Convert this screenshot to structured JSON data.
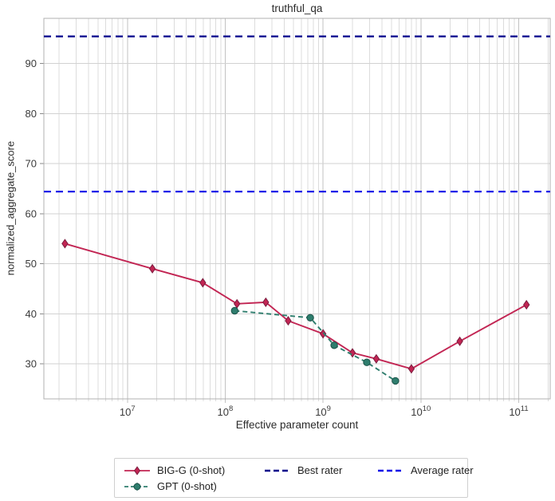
{
  "chart_data": {
    "type": "line",
    "title": "truthful_qa",
    "xlabel": "Effective parameter count",
    "ylabel": "normalized_aggregate_score",
    "x_scale": "log",
    "grid": true,
    "legend_position": "bottom",
    "xlim": [
      1400000,
      210000000000
    ],
    "ylim": [
      23,
      99
    ],
    "x_ticks": [
      10000000,
      100000000,
      1000000000,
      10000000000,
      100000000000
    ],
    "y_ticks": [
      30,
      40,
      50,
      60,
      70,
      80,
      90
    ],
    "series": [
      {
        "name": "BIG-G (0-shot)",
        "marker": "diamond",
        "line_style": "solid",
        "color": "#c22553",
        "edge_color": "#7b1d3f",
        "yerr": 0.7,
        "points": [
          [
            2300000,
            54.0
          ],
          [
            18000000,
            49.0
          ],
          [
            59000000,
            46.2
          ],
          [
            132000000,
            42.0
          ],
          [
            260000000,
            42.3
          ],
          [
            440000000,
            38.6
          ],
          [
            1000000000,
            36.0
          ],
          [
            2000000000,
            32.2
          ],
          [
            3500000000,
            31.0
          ],
          [
            8000000000,
            29.0
          ],
          [
            25000000000,
            34.5
          ],
          [
            120000000000,
            41.8
          ]
        ]
      },
      {
        "name": "GPT (0-shot)",
        "marker": "circle",
        "line_style": "dashed",
        "color": "#2e7d6d",
        "edge_color": "#1c5248",
        "yerr": 0.5,
        "points": [
          [
            125000000,
            40.6
          ],
          [
            740000000,
            39.2
          ],
          [
            1300000000,
            33.7
          ],
          [
            2800000000,
            30.3
          ],
          [
            5500000000,
            26.6
          ]
        ]
      }
    ],
    "ref_lines": [
      {
        "label": "Best rater",
        "value": 95.4,
        "color": "#00008b"
      },
      {
        "label": "Average rater",
        "value": 64.4,
        "color": "#0f0fe8"
      }
    ],
    "style": {
      "minor_grid_color": "#dcdcdc",
      "major_grid_color": "#c2c2c2",
      "h_grid_color": "#d2d2d2",
      "spine_color": "#b0b0b0",
      "tick_color": "#8a8a8a",
      "tick_label_color": "#3a3a3a"
    }
  }
}
